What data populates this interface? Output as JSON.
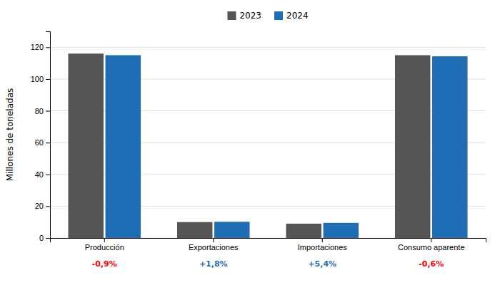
{
  "chart_data": {
    "type": "bar",
    "categories": [
      "Producción",
      "Exportaciones",
      "Importaciones",
      "Consumo aparente"
    ],
    "series": [
      {
        "name": "2023",
        "color": "#555555",
        "values": [
          116.0,
          10.0,
          9.0,
          115.0
        ]
      },
      {
        "name": "2024",
        "color": "#1f6eb5",
        "values": [
          115.0,
          10.2,
          9.5,
          114.3
        ]
      }
    ],
    "ylabel": "Millones de toneladas",
    "ylim": [
      0,
      130
    ],
    "yticks": [
      0,
      20,
      40,
      60,
      80,
      100,
      120
    ],
    "grid": true,
    "legend": "top",
    "annotations": [
      {
        "text": "-0,9%",
        "color": "red"
      },
      {
        "text": "+1,8%",
        "color": "#1f6eb5"
      },
      {
        "text": "+5,4%",
        "color": "#1f6eb5"
      },
      {
        "text": "-0,6%",
        "color": "red"
      }
    ]
  }
}
